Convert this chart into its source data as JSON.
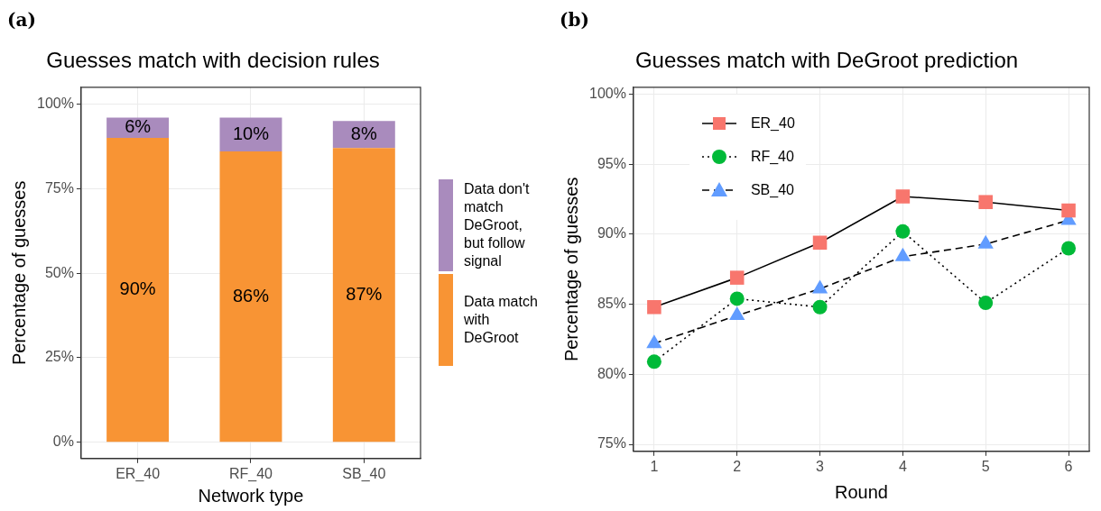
{
  "chart_data": [
    {
      "type": "bar",
      "stacked": true,
      "title": "Guesses match with decision rules",
      "xlabel": "Network type",
      "ylabel": "Percentage of guesses",
      "annotations": [
        "(a)"
      ],
      "categories": [
        "ER_40",
        "RF_40",
        "SB_40"
      ],
      "series": [
        {
          "name": "Data match with DeGroot",
          "color": "#f89434",
          "values": [
            90,
            86,
            87
          ],
          "value_labels": [
            "90%",
            "86%",
            "87%"
          ]
        },
        {
          "name": "Data don't match DeGroot, but follow signal",
          "color": "#a98bbd",
          "values": [
            6,
            10,
            8
          ],
          "value_labels": [
            "6%",
            "10%",
            "8%"
          ]
        }
      ],
      "ylim": [
        -4.8,
        105
      ],
      "yticks": [
        {
          "value": 0,
          "label": "0%"
        },
        {
          "value": 25,
          "label": "25%"
        },
        {
          "value": 50,
          "label": "50%"
        },
        {
          "value": 75,
          "label": "75%"
        },
        {
          "value": 100,
          "label": "100%"
        }
      ],
      "grid": true,
      "legend": "right"
    },
    {
      "type": "line",
      "title": "Guesses match with DeGroot prediction",
      "xlabel": "Round",
      "ylabel": "Percentage of guesses",
      "annotations": [
        "(b)"
      ],
      "x": [
        1,
        2,
        3,
        4,
        5,
        6
      ],
      "series": [
        {
          "name": "ER_40",
          "color": "#f8766d",
          "marker": "square",
          "line_style": "solid",
          "values": [
            84.8,
            86.9,
            89.4,
            92.7,
            92.3,
            91.7
          ]
        },
        {
          "name": "RF_40",
          "color": "#00ba38",
          "marker": "circle",
          "line_style": "dotted",
          "values": [
            80.9,
            85.4,
            84.8,
            90.2,
            85.1,
            89.0
          ]
        },
        {
          "name": "SB_40",
          "color": "#619cff",
          "marker": "triangle",
          "line_style": "dashed",
          "values": [
            82.2,
            84.2,
            86.1,
            88.4,
            89.3,
            91.0
          ]
        }
      ],
      "xlim": [
        0.75,
        6.25
      ],
      "xticks": [
        1,
        2,
        3,
        4,
        5,
        6
      ],
      "ylim": [
        74.5,
        100.5
      ],
      "yticks": [
        {
          "value": 75,
          "label": "75%"
        },
        {
          "value": 80,
          "label": "80%"
        },
        {
          "value": 85,
          "label": "85%"
        },
        {
          "value": 90,
          "label": "90%"
        },
        {
          "value": 95,
          "label": "95%"
        },
        {
          "value": 100,
          "label": "100%"
        }
      ],
      "grid": true,
      "legend": "top left"
    }
  ]
}
